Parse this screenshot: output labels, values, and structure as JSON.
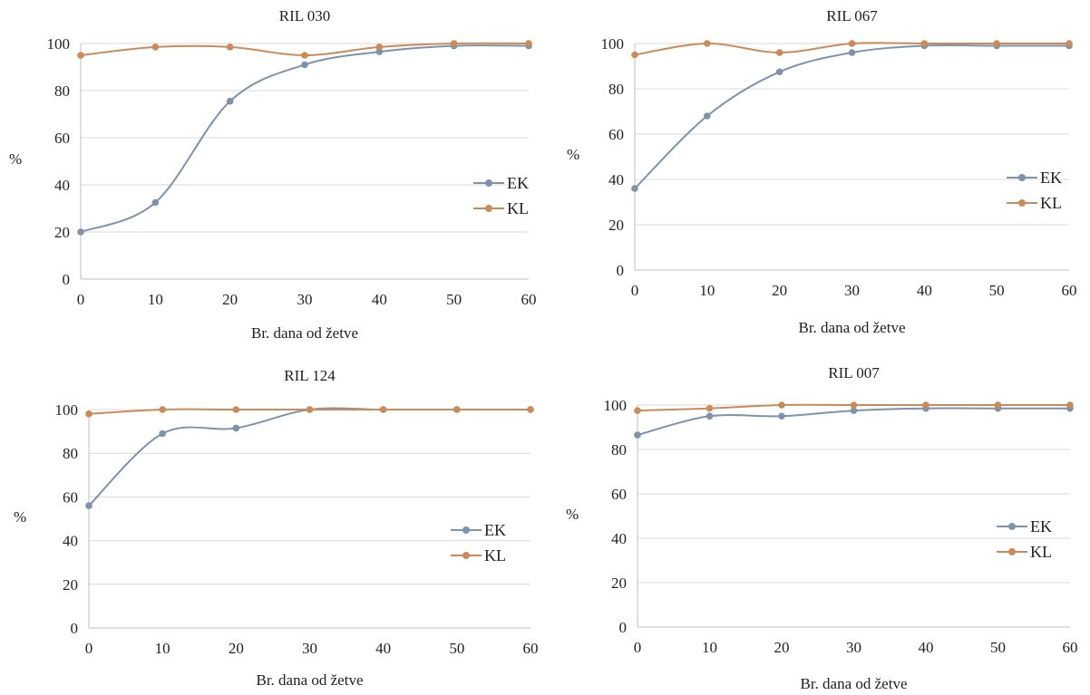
{
  "colors": {
    "EK": "#7d92ab",
    "KL": "#cc8a58",
    "axis": "#bfbfbf",
    "grid": "#d9d9d9"
  },
  "chart_data": [
    {
      "type": "line",
      "title": "RIL 030",
      "xlabel": "Br. dana od žetve",
      "ylabel": "%",
      "x": [
        0,
        10,
        20,
        30,
        40,
        50,
        60
      ],
      "xlim": [
        0,
        60
      ],
      "ylim": [
        0,
        100
      ],
      "yticks": [
        0,
        20,
        40,
        60,
        80,
        100
      ],
      "grid": true,
      "legend_position": "right",
      "series": [
        {
          "name": "EK",
          "values": [
            20,
            32.5,
            75.5,
            91,
            96.5,
            99,
            99
          ]
        },
        {
          "name": "KL",
          "values": [
            95,
            98.5,
            98.5,
            95,
            98.5,
            100,
            100
          ]
        }
      ]
    },
    {
      "type": "line",
      "title": "RIL 067",
      "xlabel": "Br. dana od žetve",
      "ylabel": "%",
      "x": [
        0,
        10,
        20,
        30,
        40,
        50,
        60
      ],
      "xlim": [
        0,
        60
      ],
      "ylim": [
        0,
        100
      ],
      "yticks": [
        0,
        20,
        40,
        60,
        80,
        100
      ],
      "grid": true,
      "legend_position": "right",
      "series": [
        {
          "name": "EK",
          "values": [
            36,
            68,
            87.5,
            96,
            99,
            99,
            99
          ]
        },
        {
          "name": "KL",
          "values": [
            95,
            100,
            96,
            100,
            100,
            100,
            100
          ]
        }
      ]
    },
    {
      "type": "line",
      "title": "RIL 124",
      "xlabel": "Br. dana od žetve",
      "ylabel": "%",
      "x": [
        0,
        10,
        20,
        30,
        40,
        50,
        60
      ],
      "xlim": [
        0,
        60
      ],
      "ylim": [
        0,
        100
      ],
      "yticks": [
        0,
        20,
        40,
        60,
        80,
        100
      ],
      "grid": true,
      "legend_position": "right",
      "series": [
        {
          "name": "EK",
          "values": [
            56,
            89,
            91.5,
            100,
            100,
            100,
            100
          ]
        },
        {
          "name": "KL",
          "values": [
            98,
            100,
            100,
            100,
            100,
            100,
            100
          ]
        }
      ]
    },
    {
      "type": "line",
      "title": "RIL 007",
      "xlabel": "Br. dana od žetve",
      "ylabel": "%",
      "x": [
        0,
        10,
        20,
        30,
        40,
        50,
        60
      ],
      "xlim": [
        0,
        60
      ],
      "ylim": [
        0,
        100
      ],
      "yticks": [
        0,
        20,
        40,
        60,
        80,
        100
      ],
      "grid": true,
      "legend_position": "right",
      "series": [
        {
          "name": "EK",
          "values": [
            86.5,
            95,
            95,
            97.5,
            98.5,
            98.5,
            98.5
          ]
        },
        {
          "name": "KL",
          "values": [
            97.5,
            98.5,
            100,
            100,
            100,
            100,
            100
          ]
        }
      ]
    }
  ]
}
